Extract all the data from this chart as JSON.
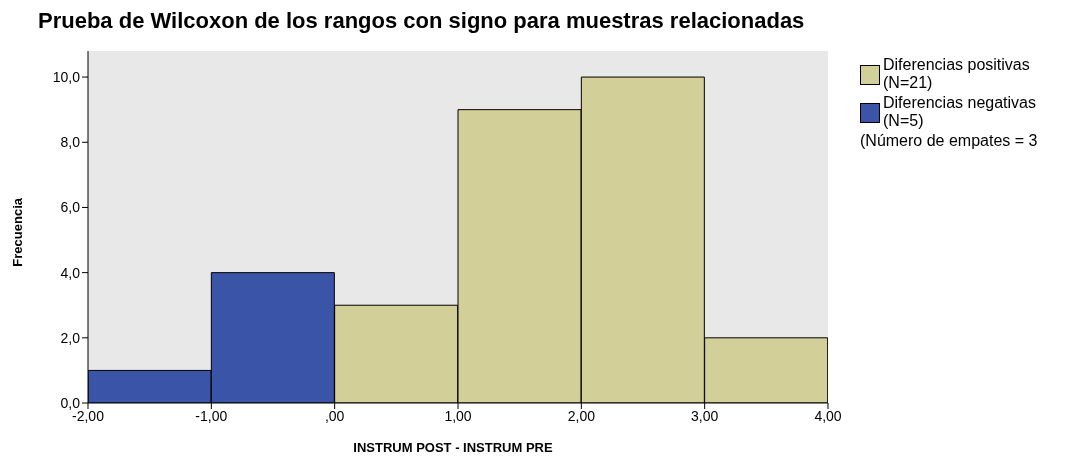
{
  "chart_data": {
    "type": "histogram",
    "title": "Prueba de Wilcoxon de los rangos con signo para muestras relacionadas",
    "xlabel": "INSTRUM POST - INSTRUM PRE",
    "ylabel": "Frecuencia",
    "bins": [
      -2,
      -1,
      0,
      1,
      2,
      3,
      4
    ],
    "series": [
      {
        "name": "Diferencias positivas (N=21)",
        "color": "#d3cf98",
        "values": [
          null,
          null,
          3,
          9,
          10,
          2
        ]
      },
      {
        "name": "Diferencias negativas (N=5)",
        "color": "#3a55a8",
        "values": [
          1,
          4,
          null,
          null,
          null,
          null
        ]
      }
    ],
    "xlim": [
      -2,
      4
    ],
    "xticks": [
      {
        "value": -2,
        "label": "-2,00"
      },
      {
        "value": -1,
        "label": "-1,00"
      },
      {
        "value": 0,
        "label": ",00"
      },
      {
        "value": 1,
        "label": "1,00"
      },
      {
        "value": 2,
        "label": "2,00"
      },
      {
        "value": 3,
        "label": "3,00"
      },
      {
        "value": 4,
        "label": "4,00"
      }
    ],
    "ylim": [
      0,
      10.8
    ],
    "yticks": [
      {
        "value": 0,
        "label": "0,0"
      },
      {
        "value": 2,
        "label": "2,0"
      },
      {
        "value": 4,
        "label": "4,0"
      },
      {
        "value": 6,
        "label": "6,0"
      },
      {
        "value": 8,
        "label": "8,0"
      },
      {
        "value": 10,
        "label": "10,0"
      }
    ],
    "annotations": [
      "(Número de empates = 3"
    ],
    "legend": "right",
    "grid": false
  }
}
